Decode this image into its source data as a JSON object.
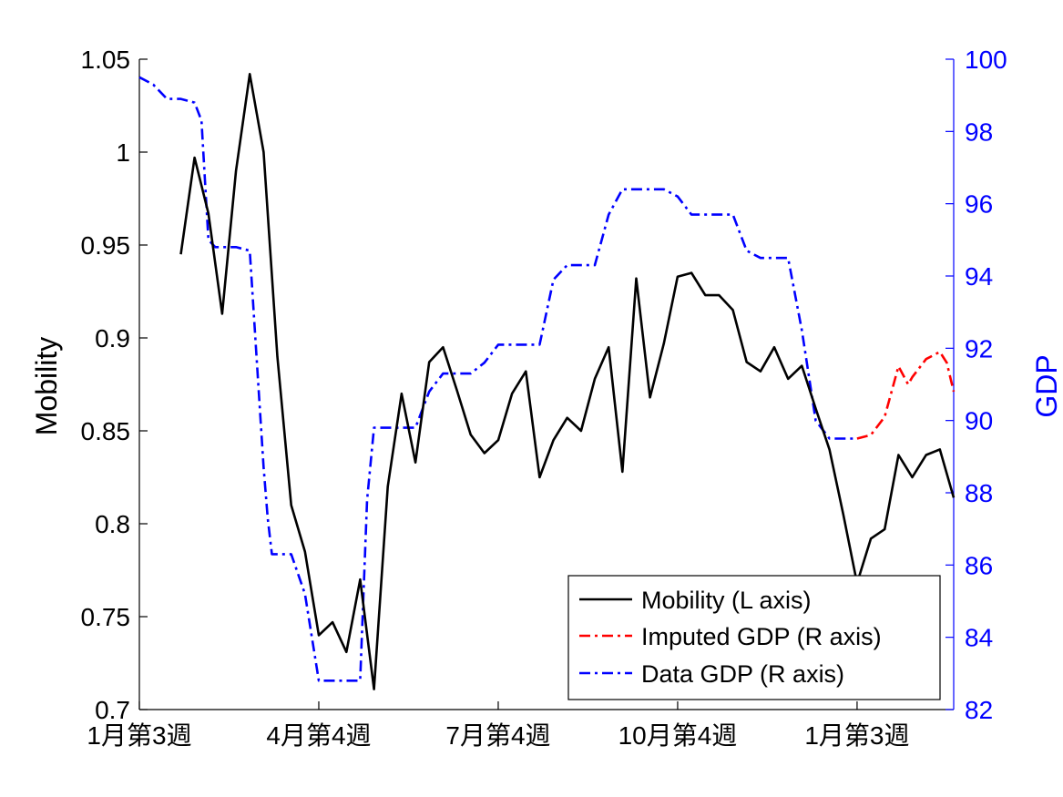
{
  "chart_data": {
    "type": "line",
    "title": "",
    "xlabel": "",
    "ylabel_left": "Mobility",
    "ylabel_right": "GDP",
    "ylim_left": [
      0.7,
      1.05
    ],
    "ylim_right": [
      82,
      100
    ],
    "xlim": [
      0,
      59
    ],
    "left_ticks": [
      "0.7",
      "0.75",
      "0.8",
      "0.85",
      "0.9",
      "0.95",
      "1",
      "1.05"
    ],
    "right_ticks": [
      "82",
      "84",
      "86",
      "88",
      "90",
      "92",
      "94",
      "96",
      "98",
      "100"
    ],
    "x_tick_positions": [
      0,
      13,
      26,
      39,
      52
    ],
    "x_tick_labels": [
      "1月第3週",
      "4月第4週",
      "7月第4週",
      "10月第4週",
      "1月第3週"
    ],
    "colors": {
      "left_axis": "#000000",
      "right_axis": "#0000ff",
      "mobility": "#000000",
      "imputed": "#ff0000",
      "data_gdp": "#0000ff"
    },
    "legend": {
      "placement": "bottom-right",
      "entries": [
        "Mobility (L axis)",
        "Imputed GDP (R axis)",
        "Data GDP (R axis)"
      ]
    },
    "series": [
      {
        "name": "Mobility (L axis)",
        "axis": "left",
        "style": "solid",
        "x": [
          3,
          4,
          5,
          6,
          7,
          8,
          9,
          10,
          11,
          12,
          13,
          14,
          15,
          16,
          17,
          18,
          19,
          20,
          21,
          22,
          23,
          24,
          25,
          26,
          27,
          28,
          29,
          30,
          31,
          32,
          33,
          34,
          35,
          36,
          37,
          38,
          39,
          40,
          41,
          42,
          43,
          44,
          45,
          46,
          47,
          48,
          49,
          50,
          51,
          52,
          53,
          54,
          55,
          56,
          57,
          58,
          59
        ],
        "values": [
          0.945,
          0.997,
          0.967,
          0.913,
          0.99,
          1.042,
          1.0,
          0.89,
          0.81,
          0.785,
          0.74,
          0.747,
          0.731,
          0.77,
          0.711,
          0.82,
          0.87,
          0.833,
          0.887,
          0.895,
          0.872,
          0.848,
          0.838,
          0.845,
          0.87,
          0.882,
          0.825,
          0.845,
          0.857,
          0.85,
          0.878,
          0.895,
          0.828,
          0.932,
          0.868,
          0.897,
          0.933,
          0.935,
          0.923,
          0.923,
          0.915,
          0.887,
          0.882,
          0.895,
          0.878,
          0.885,
          0.862,
          0.84,
          0.805,
          0.768,
          0.792,
          0.797,
          0.837,
          0.825,
          0.837,
          0.84,
          0.814
        ]
      },
      {
        "name": "Imputed GDP (R axis)",
        "axis": "right",
        "style": "dashdot",
        "x": [
          52,
          53,
          54,
          55,
          55.7,
          56,
          57,
          58,
          58.5,
          59
        ],
        "values": [
          89.5,
          89.6,
          90.1,
          91.5,
          91.0,
          91.2,
          91.7,
          91.9,
          91.6,
          90.8
        ]
      },
      {
        "name": "Data GDP (R axis)",
        "axis": "right",
        "style": "dashdot",
        "x": [
          0,
          1,
          2,
          3,
          4,
          4.5,
          5,
          5.5,
          6,
          7,
          8,
          9,
          9.3,
          9.6,
          10,
          10.5,
          11,
          12,
          13,
          14,
          15,
          16,
          16.5,
          17,
          18,
          19,
          20,
          21,
          22,
          23,
          24,
          25,
          26,
          27,
          28,
          29,
          30,
          31,
          32,
          33,
          34,
          35,
          36,
          37,
          38,
          39,
          40,
          41,
          42,
          43,
          44,
          45,
          46,
          47,
          48,
          49,
          50,
          51,
          52
        ],
        "values": [
          99.5,
          99.3,
          98.9,
          98.9,
          98.8,
          98.3,
          95.0,
          94.8,
          94.8,
          94.8,
          94.7,
          88.7,
          87.3,
          86.3,
          86.3,
          86.3,
          86.3,
          85.2,
          82.8,
          82.8,
          82.8,
          82.8,
          87.8,
          89.8,
          89.8,
          89.8,
          89.8,
          90.8,
          91.3,
          91.3,
          91.3,
          91.6,
          92.1,
          92.1,
          92.1,
          92.1,
          93.9,
          94.3,
          94.3,
          94.3,
          95.7,
          96.4,
          96.4,
          96.4,
          96.4,
          96.2,
          95.7,
          95.7,
          95.7,
          95.7,
          94.7,
          94.5,
          94.5,
          94.5,
          92.5,
          90.0,
          89.5,
          89.5,
          89.5
        ]
      }
    ]
  }
}
